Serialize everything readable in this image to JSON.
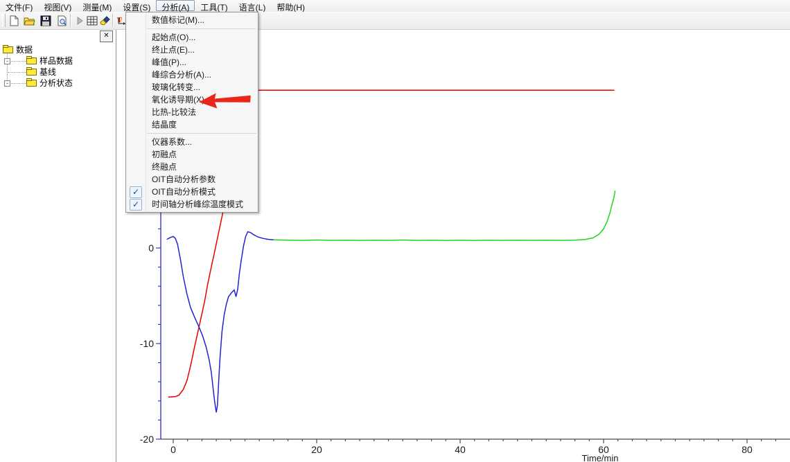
{
  "menu_bar": {
    "open_index": 4,
    "items": [
      {
        "name": "file",
        "label": "文件(F)"
      },
      {
        "name": "view",
        "label": "视图(V)"
      },
      {
        "name": "measure",
        "label": "测量(M)"
      },
      {
        "name": "settings",
        "label": "设置(S)"
      },
      {
        "name": "analysis",
        "label": "分析(A)"
      },
      {
        "name": "tools",
        "label": "工具(T)"
      },
      {
        "name": "language",
        "label": "语言(L)"
      },
      {
        "name": "help",
        "label": "帮助(H)"
      }
    ]
  },
  "toolbar": {
    "buttons": [
      {
        "name": "new-document"
      },
      {
        "name": "open-file"
      },
      {
        "name": "save-file"
      },
      {
        "name": "print-preview"
      },
      {
        "name": "start-measurement"
      },
      {
        "name": "data-table"
      },
      {
        "name": "style-brush"
      },
      {
        "name": "temperature-time-chart"
      }
    ]
  },
  "sidebar": {
    "close_glyph": "✕",
    "tree": {
      "root": {
        "name": "data",
        "label": "数据"
      },
      "children": [
        {
          "name": "sample-data",
          "label": "样品数据",
          "expandable": true,
          "expander_glyph": "-"
        },
        {
          "name": "baseline",
          "label": "基线",
          "expandable": false,
          "expander_glyph": ""
        },
        {
          "name": "analysis-status",
          "label": "分析状态",
          "expandable": true,
          "expander_glyph": "-"
        }
      ]
    }
  },
  "dropdown_menu": {
    "owner": "analysis",
    "items": [
      {
        "type": "item",
        "name": "numeric-label",
        "label": "数值标记(M)...",
        "checked": false
      },
      {
        "type": "separator"
      },
      {
        "type": "item",
        "name": "onset-point",
        "label": "起始点(O)...",
        "checked": false
      },
      {
        "type": "item",
        "name": "end-point",
        "label": "终止点(E)...",
        "checked": false
      },
      {
        "type": "item",
        "name": "peak-value",
        "label": "峰值(P)...",
        "checked": false
      },
      {
        "type": "item",
        "name": "peak-comprehensive",
        "label": "峰综合分析(A)...",
        "checked": false
      },
      {
        "type": "item",
        "name": "glass-transition",
        "label": "玻璃化转变...",
        "checked": false
      },
      {
        "type": "item",
        "name": "oxidation-induction-time",
        "label": "氧化诱导期(X)...",
        "checked": false,
        "arrow": true
      },
      {
        "type": "item",
        "name": "specific-heat-comparison",
        "label": "比热-比较法",
        "checked": false
      },
      {
        "type": "item",
        "name": "crystallinity",
        "label": "结晶度",
        "checked": false
      },
      {
        "type": "separator"
      },
      {
        "type": "item",
        "name": "instrument-coefficient",
        "label": "仪器系数...",
        "checked": false
      },
      {
        "type": "item",
        "name": "initial-melting-point",
        "label": "初融点",
        "checked": false
      },
      {
        "type": "item",
        "name": "final-melting-point",
        "label": "终融点",
        "checked": false
      },
      {
        "type": "item",
        "name": "oit-auto-analysis-params",
        "label": "OIT自动分析参数",
        "checked": false
      },
      {
        "type": "item",
        "name": "oit-auto-analysis-mode",
        "label": "OIT自动分析模式",
        "checked": true
      },
      {
        "type": "item",
        "name": "time-axis-peak-temp-mode",
        "label": "时间轴分析峰综温度模式",
        "checked": true
      }
    ],
    "check_glyph": "✓",
    "annotation_arrow_color": "#e8271a"
  },
  "chart_data": {
    "type": "line",
    "xlabel": "Time/min",
    "x_tick_labels": [
      "0",
      "20",
      "40",
      "60",
      "80"
    ],
    "x_ticks": [
      0,
      20,
      40,
      60,
      80
    ],
    "x_minor_step": 2,
    "xlim": [
      -1.8,
      86
    ],
    "y_tick_labels": [
      "0",
      "-10",
      "-20"
    ],
    "y_ticks": [
      0,
      -10,
      -20
    ],
    "y_minor_step": 2,
    "ylim": [
      -20,
      22.4
    ],
    "grid": false,
    "legend": false,
    "style": {
      "y_axis_color": "#3939c8",
      "x_axis_color": "#4a4a4a",
      "tick_label_color": "#1a1a1a"
    },
    "series": [
      {
        "name": "temperature-ramp",
        "color": "#e80000",
        "points": [
          [
            -0.7,
            -15.6
          ],
          [
            0.3,
            -15.55
          ],
          [
            0.8,
            -15.4
          ],
          [
            1.4,
            -14.8
          ],
          [
            1.9,
            -13.9
          ],
          [
            2.4,
            -12.4
          ],
          [
            2.9,
            -10.6
          ],
          [
            3.4,
            -8.9
          ],
          [
            3.9,
            -7.2
          ],
          [
            4.4,
            -5.5
          ],
          [
            4.8,
            -3.8
          ],
          [
            5.3,
            -2.0
          ],
          [
            5.8,
            -0.3
          ],
          [
            6.3,
            1.5
          ],
          [
            6.8,
            3.3
          ],
          [
            7.3,
            5.1
          ],
          [
            7.8,
            6.9
          ],
          [
            8.3,
            8.7
          ],
          [
            8.8,
            10.5
          ],
          [
            9.3,
            12.2
          ],
          [
            9.8,
            13.9
          ],
          [
            10.3,
            15.3
          ],
          [
            10.8,
            16.2
          ],
          [
            11.3,
            16.5
          ],
          [
            61.5,
            16.5
          ]
        ]
      },
      {
        "name": "dsc-signal-blue",
        "color": "#2222d4",
        "points": [
          [
            -0.9,
            0.9
          ],
          [
            -0.4,
            1.1
          ],
          [
            0.0,
            1.2
          ],
          [
            0.3,
            1.0
          ],
          [
            0.6,
            0.4
          ],
          [
            1.0,
            -1.2
          ],
          [
            1.4,
            -3.0
          ],
          [
            1.9,
            -4.8
          ],
          [
            2.4,
            -6.2
          ],
          [
            3.0,
            -7.3
          ],
          [
            3.6,
            -8.3
          ],
          [
            4.1,
            -9.2
          ],
          [
            4.6,
            -10.4
          ],
          [
            5.0,
            -11.7
          ],
          [
            5.3,
            -13.0
          ],
          [
            5.6,
            -15.0
          ],
          [
            5.8,
            -16.2
          ],
          [
            6.0,
            -17.2
          ],
          [
            6.15,
            -16.5
          ],
          [
            6.3,
            -14.5
          ],
          [
            6.5,
            -11.7
          ],
          [
            6.8,
            -8.7
          ],
          [
            7.1,
            -7.0
          ],
          [
            7.4,
            -5.9
          ],
          [
            7.7,
            -5.1
          ],
          [
            8.1,
            -4.7
          ],
          [
            8.5,
            -4.4
          ],
          [
            8.75,
            -5.1
          ],
          [
            9.0,
            -4.3
          ],
          [
            9.2,
            -2.8
          ],
          [
            9.5,
            -1.2
          ],
          [
            9.8,
            0.2
          ],
          [
            10.1,
            1.2
          ],
          [
            10.4,
            1.7
          ],
          [
            10.8,
            1.6
          ],
          [
            11.2,
            1.4
          ],
          [
            11.8,
            1.15
          ],
          [
            12.5,
            1.0
          ],
          [
            13.3,
            0.9
          ],
          [
            14.0,
            0.85
          ]
        ]
      },
      {
        "name": "dsc-signal-green",
        "color": "#1fd41f",
        "points": [
          [
            14,
            0.85
          ],
          [
            16,
            0.82
          ],
          [
            18,
            0.8
          ],
          [
            20,
            0.83
          ],
          [
            22,
            0.8
          ],
          [
            24,
            0.82
          ],
          [
            26,
            0.79
          ],
          [
            28,
            0.82
          ],
          [
            30,
            0.8
          ],
          [
            32,
            0.83
          ],
          [
            34,
            0.8
          ],
          [
            36,
            0.82
          ],
          [
            38,
            0.79
          ],
          [
            40,
            0.82
          ],
          [
            42,
            0.79
          ],
          [
            44,
            0.82
          ],
          [
            46,
            0.8
          ],
          [
            48,
            0.82
          ],
          [
            50,
            0.8
          ],
          [
            52,
            0.82
          ],
          [
            54,
            0.8
          ],
          [
            56,
            0.82
          ],
          [
            57.5,
            0.9
          ],
          [
            58.5,
            1.05
          ],
          [
            59.3,
            1.4
          ],
          [
            60.0,
            2.0
          ],
          [
            60.5,
            2.8
          ],
          [
            60.9,
            3.7
          ],
          [
            61.2,
            4.6
          ],
          [
            61.45,
            5.3
          ],
          [
            61.6,
            6.0
          ]
        ]
      }
    ]
  }
}
